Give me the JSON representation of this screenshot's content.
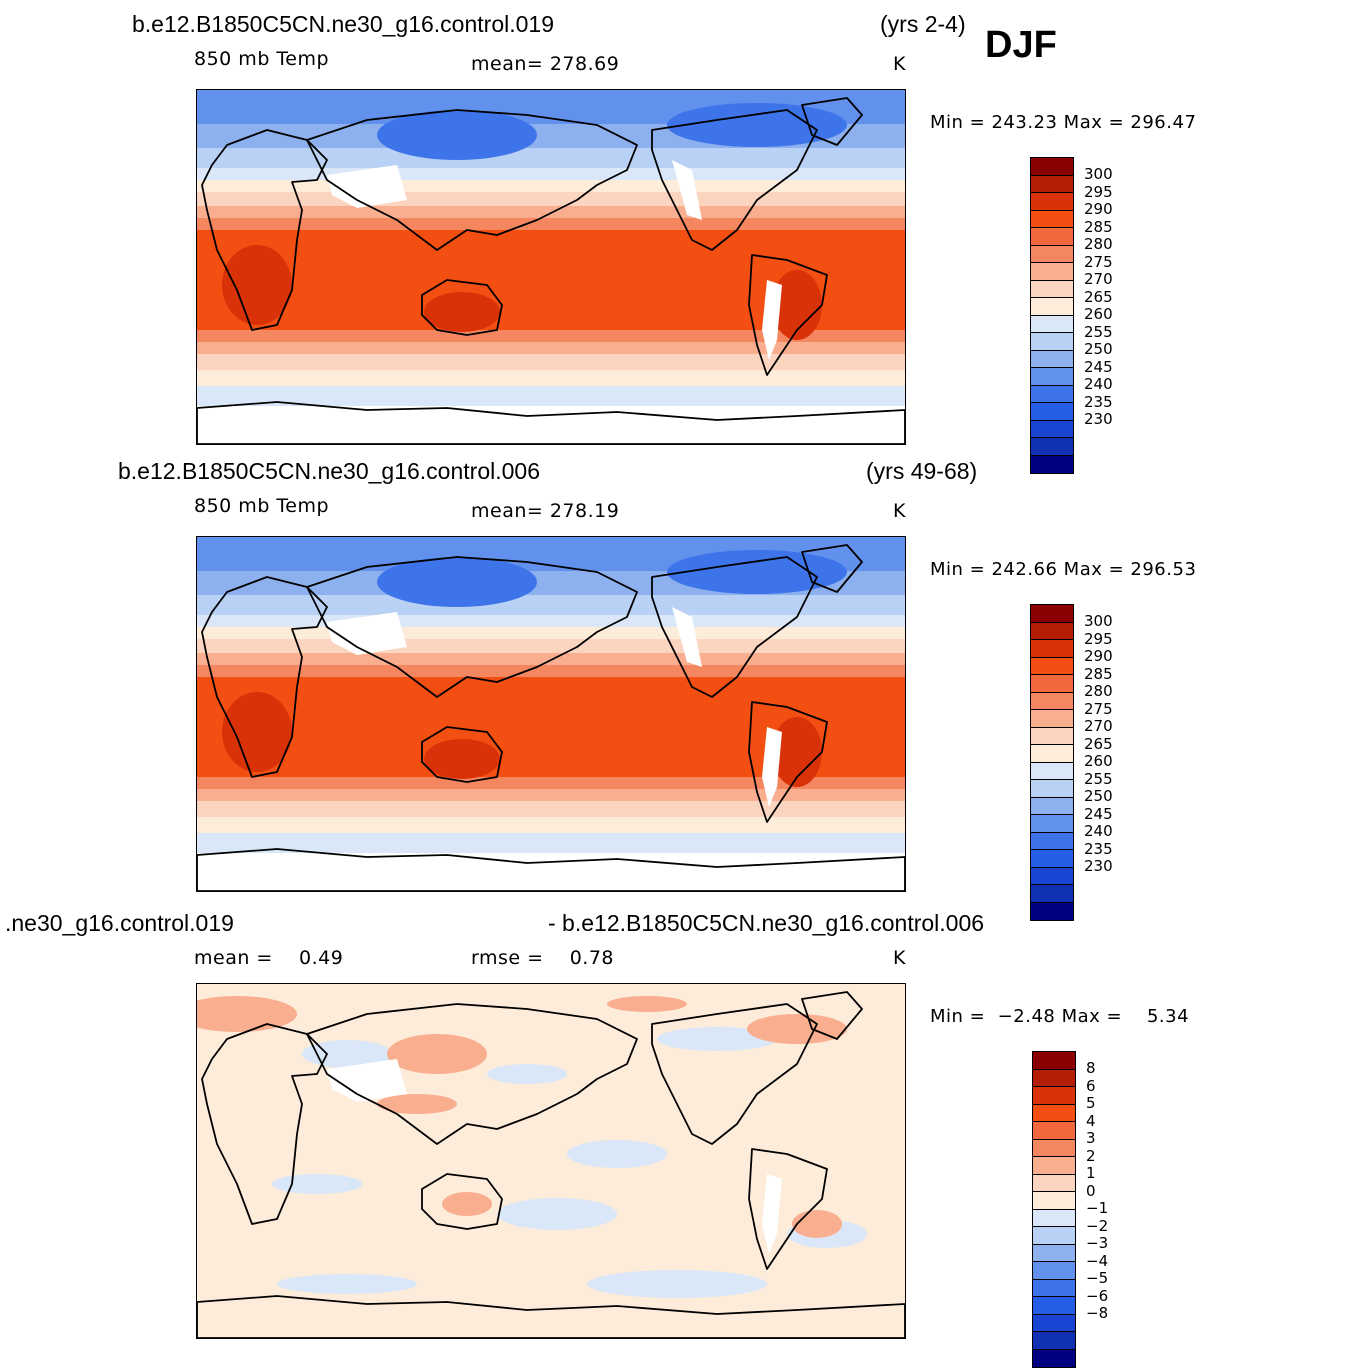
{
  "season": "DJF",
  "panels": [
    {
      "id": "top",
      "case": "b.e12.B1850C5CN.ne30_g16.control.019",
      "years": "(yrs 2-4)",
      "variable": "850 mb Temp",
      "stat1": "mean= 278.69",
      "stat2": "",
      "units": "K",
      "minmax": "Min = 243.23 Max = 296.47",
      "colorbar": {
        "labels": [
          "300",
          "295",
          "290",
          "285",
          "280",
          "275",
          "270",
          "265",
          "260",
          "255",
          "250",
          "245",
          "240",
          "235",
          "230"
        ],
        "colors": [
          "#8b0000",
          "#b31e04",
          "#d93208",
          "#f44f12",
          "#f2683e",
          "#f58760",
          "#f9ae8f",
          "#fcd5c0",
          "#fdecd9",
          "#d9e7f9",
          "#b8d1f4",
          "#8db1ee",
          "#6191ec",
          "#3d74e9",
          "#235ee4",
          "#1a44d2",
          "#1031b4",
          "#000080"
        ]
      },
      "field": "absolute"
    },
    {
      "id": "middle",
      "case": "b.e12.B1850C5CN.ne30_g16.control.006",
      "years": "(yrs 49-68)",
      "variable": "850 mb Temp",
      "stat1": "mean= 278.19",
      "stat2": "",
      "units": "K",
      "minmax": "Min = 242.66 Max = 296.53",
      "colorbar": {
        "labels": [
          "300",
          "295",
          "290",
          "285",
          "280",
          "275",
          "270",
          "265",
          "260",
          "255",
          "250",
          "245",
          "240",
          "235",
          "230"
        ],
        "colors": [
          "#8b0000",
          "#b31e04",
          "#d93208",
          "#f44f12",
          "#f2683e",
          "#f58760",
          "#f9ae8f",
          "#fcd5c0",
          "#fdecd9",
          "#d9e7f9",
          "#b8d1f4",
          "#8db1ee",
          "#6191ec",
          "#3d74e9",
          "#235ee4",
          "#1a44d2",
          "#1031b4",
          "#000080"
        ]
      },
      "field": "absolute"
    },
    {
      "id": "bottom",
      "case_left": ".ne30_g16.control.019",
      "case_right": "- b.e12.B1850C5CN.ne30_g16.control.006",
      "stat1": "mean =    0.49",
      "stat2": "rmse =    0.78",
      "units": "K",
      "minmax": "Min =  −2.48 Max =    5.34",
      "colorbar": {
        "labels": [
          "8",
          "6",
          "5",
          "4",
          "3",
          "2",
          "1",
          "0",
          "−1",
          "−2",
          "−3",
          "−4",
          "−5",
          "−6",
          "−8"
        ],
        "colors": [
          "#8b0000",
          "#b31e04",
          "#d93208",
          "#f44f12",
          "#f2683e",
          "#f58760",
          "#f9ae8f",
          "#fcd5c0",
          "#fdecd9",
          "#d9e7f9",
          "#b8d1f4",
          "#8db1ee",
          "#6191ec",
          "#3d74e9",
          "#235ee4",
          "#1a44d2",
          "#1031b4",
          "#000080"
        ]
      },
      "field": "difference"
    }
  ]
}
